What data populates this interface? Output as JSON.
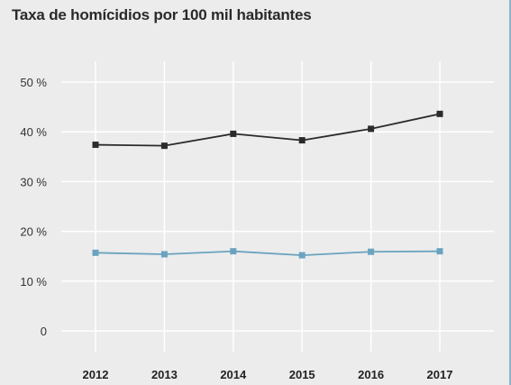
{
  "chart_data": {
    "type": "line",
    "title": "Taxa de homícidios por 100 mil habitantes",
    "x": [
      "2012",
      "2013",
      "2014",
      "2015",
      "2016",
      "2017"
    ],
    "ylim": [
      0,
      50
    ],
    "yticks": [
      {
        "value": 0,
        "label": "0"
      },
      {
        "value": 10,
        "label": "10 %"
      },
      {
        "value": 20,
        "label": "20 %"
      },
      {
        "value": 30,
        "label": "30 %"
      },
      {
        "value": 40,
        "label": "40 %"
      },
      {
        "value": 50,
        "label": "50 %"
      }
    ],
    "grid": true,
    "series": [
      {
        "values": [
          37.4,
          37.2,
          39.6,
          38.3,
          40.6,
          43.6
        ],
        "color": "#2b2b2b"
      },
      {
        "values": [
          15.7,
          15.4,
          16.0,
          15.2,
          15.9,
          16.0
        ],
        "color": "#6aa3c0"
      }
    ]
  }
}
